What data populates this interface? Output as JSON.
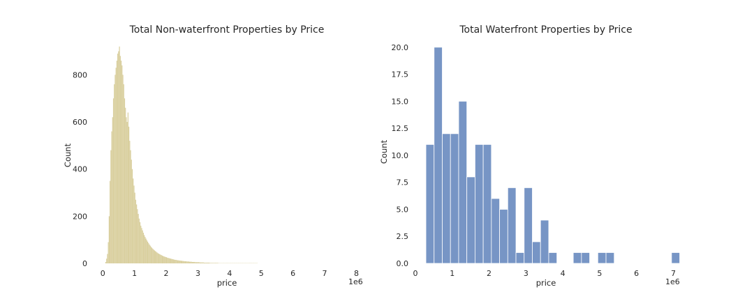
{
  "chart_data": [
    {
      "type": "bar",
      "title": "Total Non-waterfront Properties by Price",
      "xlabel": "price",
      "ylabel": "Count",
      "x_offset_text": "1e6",
      "xlim": [
        -0.27,
        8.1
      ],
      "ylim": [
        0,
        940
      ],
      "xticks": [
        0,
        1,
        2,
        3,
        4,
        5,
        6,
        7,
        8
      ],
      "yticks": [
        0,
        200,
        400,
        600,
        800
      ],
      "bar_color": "#d9cf9e",
      "bin_width": 0.027,
      "bin_start": 0.08,
      "values": [
        6,
        20,
        40,
        90,
        200,
        350,
        480,
        560,
        620,
        700,
        760,
        800,
        830,
        860,
        890,
        900,
        920,
        880,
        860,
        840,
        800,
        760,
        700,
        660,
        620,
        600,
        640,
        580,
        520,
        480,
        440,
        400,
        360,
        330,
        300,
        270,
        250,
        230,
        210,
        190,
        175,
        160,
        150,
        140,
        130,
        120,
        112,
        105,
        98,
        92,
        86,
        80,
        75,
        70,
        66,
        62,
        58,
        55,
        52,
        49,
        46,
        43,
        41,
        39,
        37,
        35,
        33,
        31,
        30,
        28,
        27,
        26,
        24,
        23,
        22,
        21,
        20,
        19,
        18,
        17,
        16,
        15,
        15,
        14,
        13,
        13,
        12,
        12,
        11,
        11,
        10,
        10,
        9,
        9,
        9,
        8,
        8,
        8,
        7,
        7,
        7,
        6,
        6,
        6,
        6,
        5,
        5,
        5,
        5,
        5,
        4,
        4,
        4,
        4,
        4,
        3,
        3,
        3,
        3,
        3,
        3,
        3,
        2,
        2,
        2,
        2,
        2,
        2,
        2,
        2,
        2,
        2,
        1,
        1,
        1,
        1,
        1,
        1,
        1,
        1,
        1,
        1,
        1,
        1,
        1,
        1,
        1,
        1,
        1,
        1,
        1,
        1,
        1,
        1,
        1,
        1,
        1,
        1,
        1,
        1,
        1,
        1,
        1,
        1,
        1,
        1,
        1,
        1,
        1,
        1,
        1,
        1,
        1,
        1,
        1,
        1,
        1,
        1
      ]
    },
    {
      "type": "bar",
      "title": "Total Waterfront Properties by Price",
      "xlabel": "price",
      "ylabel": "Count",
      "x_offset_text": "1e6",
      "xlim": [
        0,
        7.2
      ],
      "ylim": [
        0,
        20.5
      ],
      "xticks": [
        0,
        1,
        2,
        3,
        4,
        5,
        6,
        7
      ],
      "yticks": [
        0.0,
        2.5,
        5.0,
        7.5,
        10.0,
        12.5,
        15.0,
        17.5,
        20.0
      ],
      "ytick_labels": [
        "0.0",
        "2.5",
        "5.0",
        "7.5",
        "10.0",
        "12.5",
        "15.0",
        "17.5",
        "20.0"
      ],
      "bar_color": "#7795c5",
      "bin_width": 0.2222,
      "bin_start": 0.285,
      "values": [
        11,
        20,
        12,
        12,
        15,
        8,
        11,
        11,
        6,
        5,
        7,
        1,
        7,
        2,
        4,
        1,
        0,
        0,
        1,
        1,
        0,
        1,
        1,
        0,
        0,
        0,
        0,
        0,
        0,
        0,
        1
      ]
    }
  ]
}
